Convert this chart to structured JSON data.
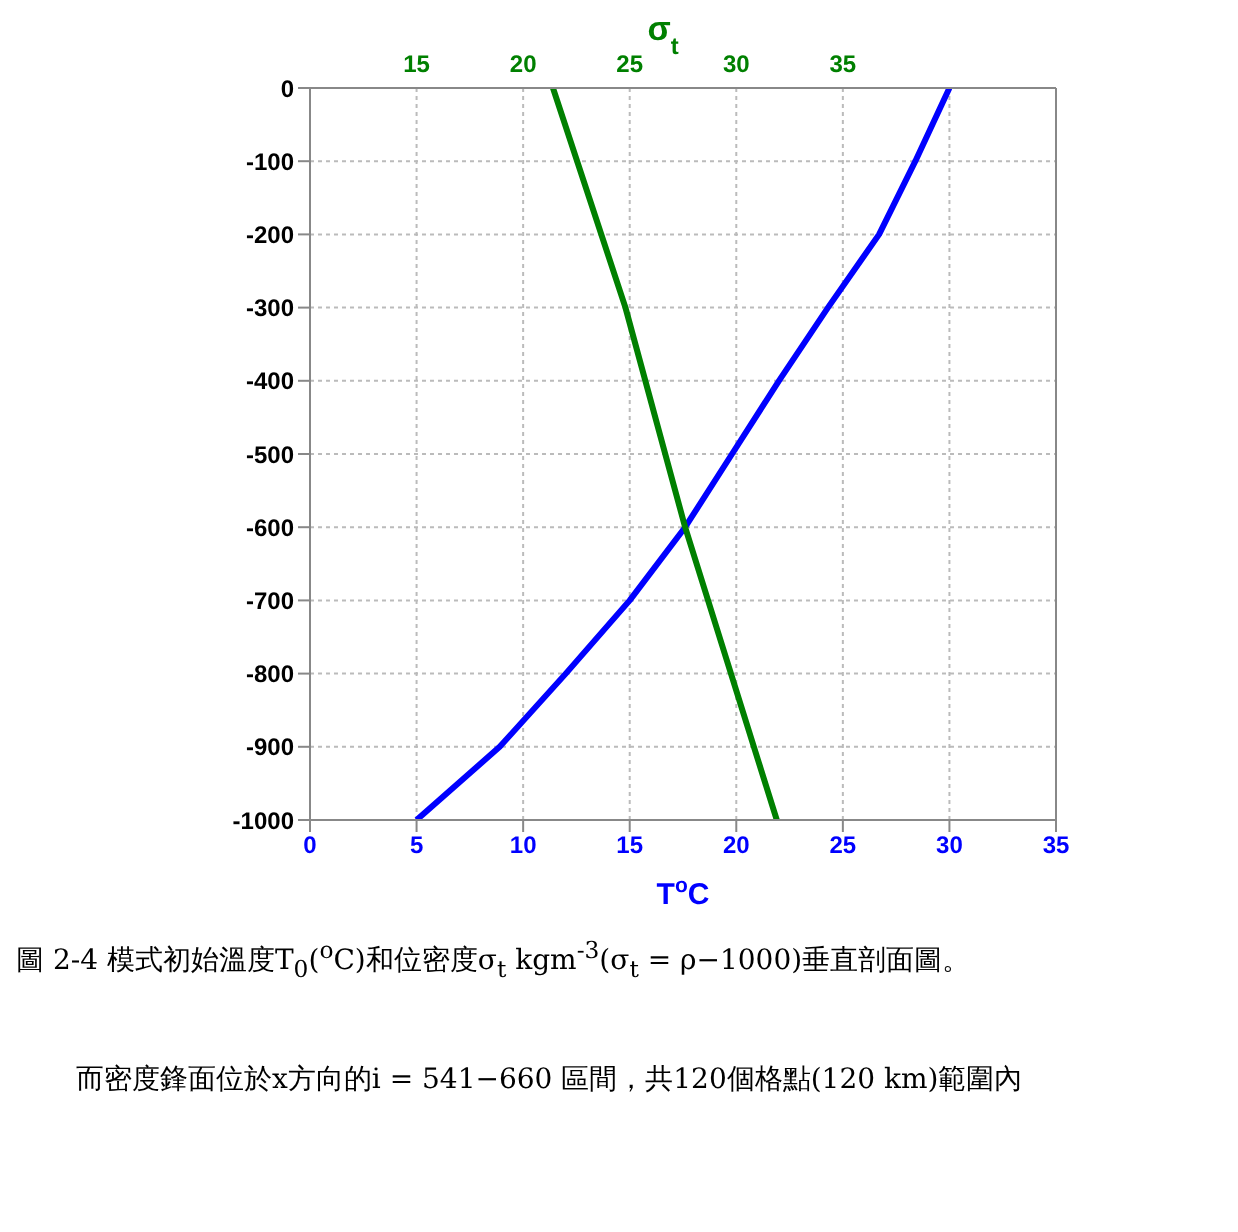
{
  "chart_data": {
    "type": "line",
    "xlabel": "T$^{o}$C",
    "x2label": "σ$_{t}$",
    "xlim": [
      0,
      35
    ],
    "xticks": [
      0,
      5,
      10,
      15,
      20,
      25,
      30,
      35
    ],
    "x2lim": [
      10,
      45
    ],
    "x2ticks": [
      15,
      20,
      25,
      30,
      35
    ],
    "ylim": [
      -1000,
      0
    ],
    "yticks": [
      -1000,
      -900,
      -800,
      -700,
      -600,
      -500,
      -400,
      -300,
      -200,
      -100,
      0
    ],
    "grid": true,
    "marker": "none",
    "line_style": "solid",
    "series": [
      {
        "color": "#0000ff",
        "x": [
          30.0,
          28.4,
          26.7,
          24.3,
          22.0,
          19.8,
          17.6,
          15.0,
          12.0,
          8.9,
          5.0
        ],
        "values": [
          0,
          -100,
          -200,
          -300,
          -400,
          -500,
          -600,
          -700,
          -800,
          -900,
          -1000
        ]
      },
      {
        "color": "#008000",
        "axis": "x2",
        "x": [
          21.4,
          24.8,
          27.6,
          31.9
        ],
        "values": [
          0,
          -300,
          -600,
          -1000
        ]
      }
    ],
    "annotations": [
      "圖 2-4 模式初始溫度T$_{0}$($^{o}$C)和位密度σ$_{t}$ kgm$^{-3}$(σ$_{t}$ = ρ−1000)垂直剖面圖。",
      "而密度鋒面位於x方向的i = 541−660 區間，共120個格點(120 km)範圍內"
    ]
  }
}
